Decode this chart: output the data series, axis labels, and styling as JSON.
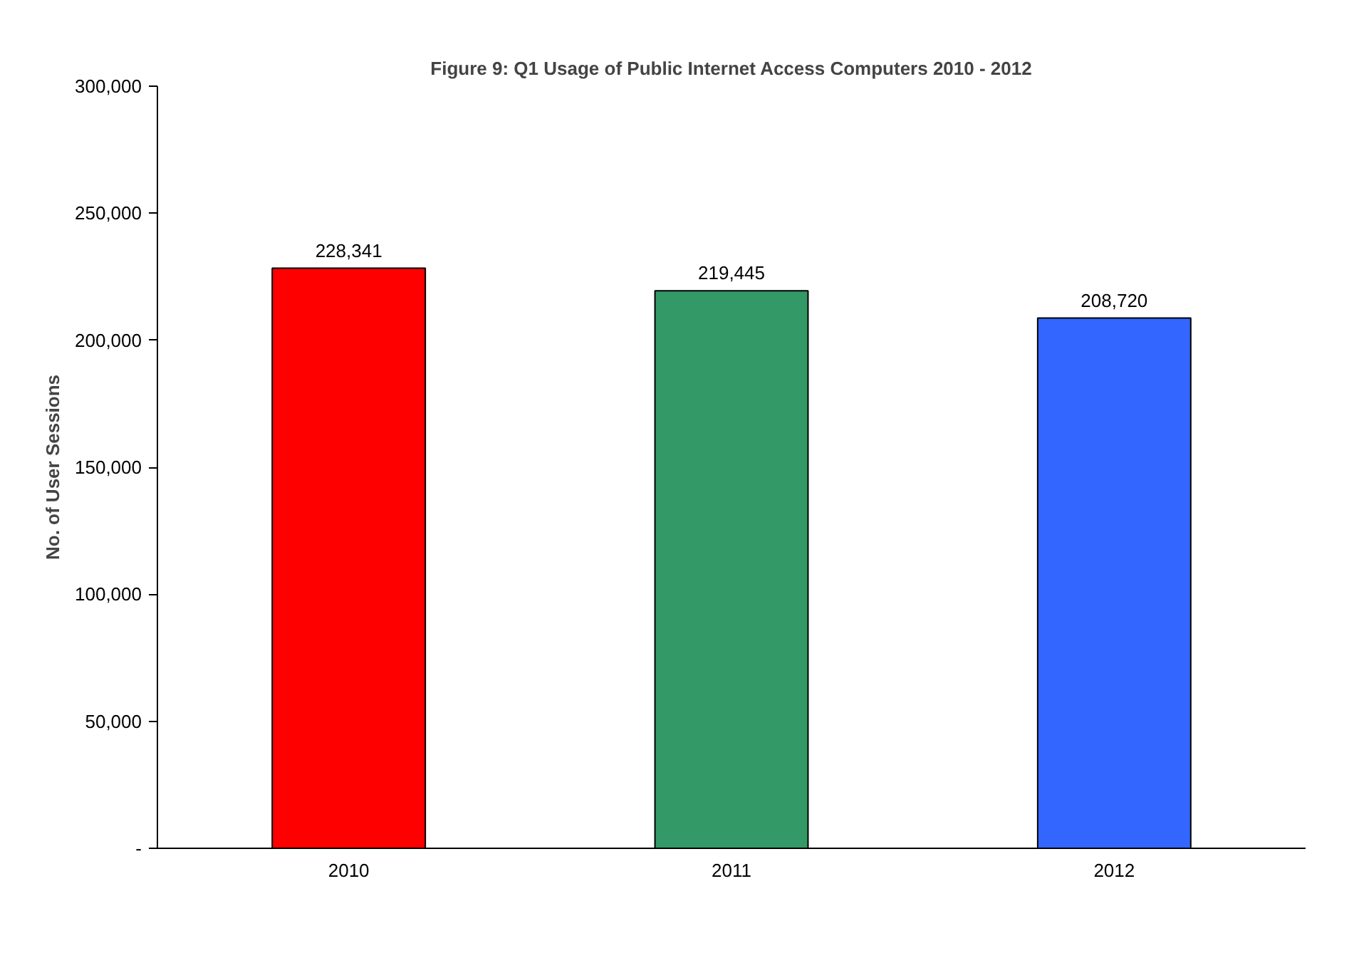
{
  "chart_data": {
    "type": "bar",
    "title": "Figure 9: Q1 Usage of Public Internet Access Computers 2010 - 2012",
    "ylabel": "No. of User Sessions",
    "categories": [
      "2010",
      "2011",
      "2012"
    ],
    "values": [
      228341,
      219445,
      208720
    ],
    "colors": [
      "#ff0000",
      "#339966",
      "#3366ff"
    ],
    "ylim": [
      0,
      300000
    ],
    "value_labels": [
      "228,341",
      "219,445",
      "208,720"
    ],
    "yticks": [
      {
        "value": 0,
        "label": "-"
      },
      {
        "value": 50000,
        "label": "50,000"
      },
      {
        "value": 100000,
        "label": "100,000"
      },
      {
        "value": 150000,
        "label": "150,000"
      },
      {
        "value": 200000,
        "label": "200,000"
      },
      {
        "value": 250000,
        "label": "250,000"
      },
      {
        "value": 300000,
        "label": "300,000"
      }
    ],
    "grid": false
  }
}
